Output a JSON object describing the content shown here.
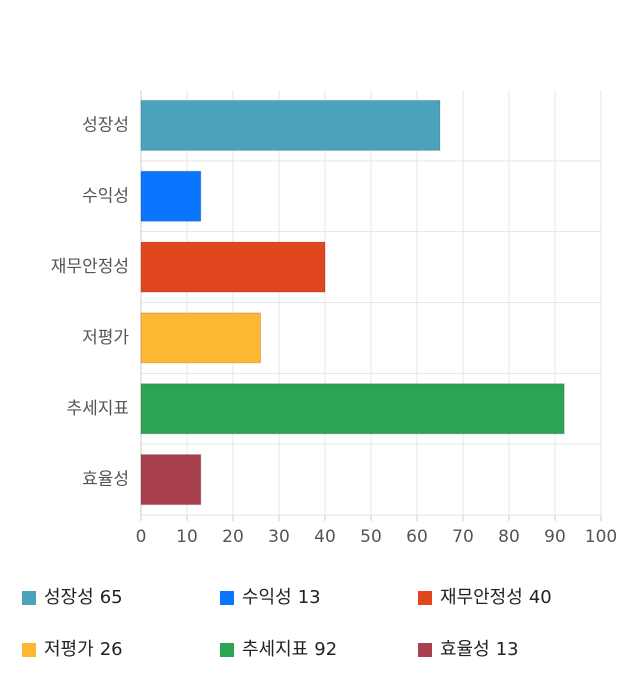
{
  "chart_data": {
    "type": "hbar",
    "categories": [
      "성장성",
      "수익성",
      "재무안정성",
      "저평가",
      "추세지표",
      "효율성"
    ],
    "values": [
      65,
      13,
      40,
      26,
      92,
      13
    ],
    "colors": [
      "#4aa3ba",
      "#0a75ff",
      "#e2461f",
      "#fdb733",
      "#2ba554",
      "#a8404e"
    ],
    "xlim": [
      0,
      100
    ],
    "xticks": [
      0,
      10,
      20,
      30,
      40,
      50,
      60,
      70,
      80,
      90,
      100
    ],
    "grid": true
  }
}
